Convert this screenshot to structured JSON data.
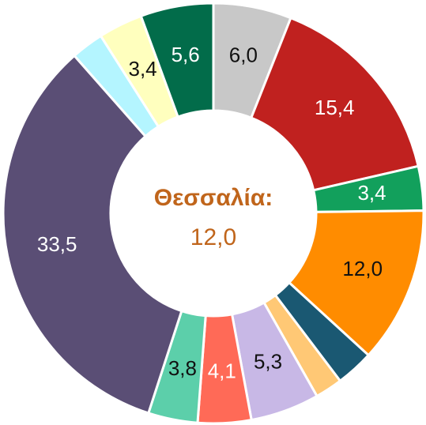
{
  "chart_data": {
    "type": "donut",
    "center_title": "Θεσσαλία:",
    "center_value": "12,0",
    "values": [
      6.0,
      15.4,
      3.4,
      12.0,
      2.9,
      2.1,
      5.3,
      4.1,
      3.8,
      33.5,
      2.5,
      3.4,
      5.6
    ],
    "value_labels": [
      "6,0",
      "15,4",
      "3,4",
      "12,0",
      null,
      null,
      "5,3",
      "4,1",
      "3,8",
      "33,5",
      null,
      "3,4",
      "5,6"
    ],
    "colors": [
      "#c8c8c8",
      "#c0211f",
      "#12a05c",
      "#ff8c00",
      "#1a5872",
      "#ffc875",
      "#c8b8e6",
      "#ff6a57",
      "#5ccfaa",
      "#5a4e75",
      "#b4f5ff",
      "#ffffbe",
      "#026c4a"
    ]
  }
}
